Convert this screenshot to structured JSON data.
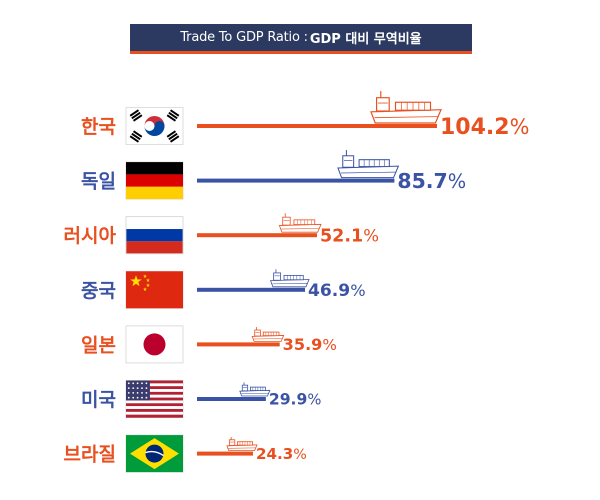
{
  "title": {
    "en": "Trade To GDP Ratio : ",
    "ko": "GDP 대비 무역비율"
  },
  "colors": {
    "orange": "#e8501f",
    "blue": "#3a53a4",
    "navy": "#2c3a62"
  },
  "chart_data": {
    "type": "bar",
    "title": "Trade To GDP Ratio : GDP 대비 무역비율",
    "categories": [
      "한국",
      "독일",
      "러시아",
      "중국",
      "일본",
      "미국",
      "브라질"
    ],
    "values": [
      104.2,
      85.7,
      52.1,
      46.9,
      35.9,
      29.9,
      24.3
    ],
    "value_labels": [
      "104.2",
      "85.7",
      "52.1",
      "46.9",
      "35.9",
      "29.9",
      "24.3"
    ],
    "unit": "%",
    "flags": [
      "south-korea-flag",
      "germany-flag",
      "russia-flag",
      "china-flag",
      "japan-flag",
      "usa-flag",
      "brazil-flag"
    ],
    "icon": "cargo-ship-icon",
    "series_colors": [
      "#e8501f",
      "#3a53a4",
      "#e8501f",
      "#3a53a4",
      "#e8501f",
      "#3a53a4",
      "#e8501f"
    ],
    "xlim": [
      0,
      104.2
    ],
    "grid": false,
    "legend": "none"
  }
}
